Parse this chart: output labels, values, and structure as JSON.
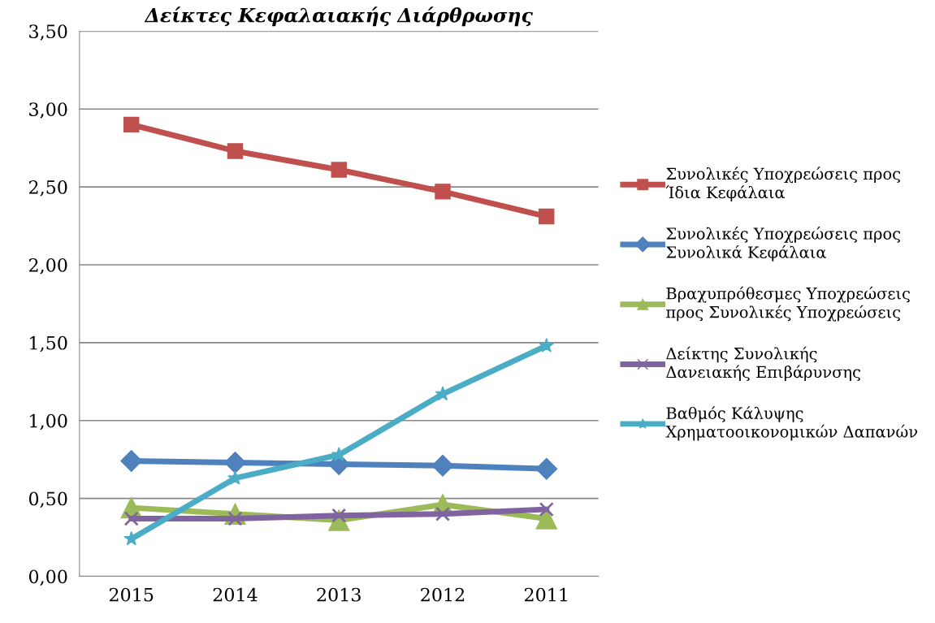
{
  "chart_data": {
    "type": "line",
    "title": "Δείκτες Κεφαλαιακής Διάρθρωσης",
    "categories": [
      "2015",
      "2014",
      "2013",
      "2012",
      "2011"
    ],
    "series": [
      {
        "name": "Συνολικές Υποχρεώσεις προς Ίδια Κεφάλαια",
        "color": "#c0504d",
        "marker": "square",
        "values": [
          2.9,
          2.73,
          2.61,
          2.47,
          2.31
        ]
      },
      {
        "name": "Συνολικές Υποχρεώσεις προς Συνολικά Κεφάλαια",
        "color": "#4f81bd",
        "marker": "diamond",
        "values": [
          0.74,
          0.73,
          0.72,
          0.71,
          0.69
        ]
      },
      {
        "name": "Βραχυπρόθεσμες Υποχρεώσεις προς Συνολικές Υποχρεώσεις",
        "color": "#9bbb59",
        "marker": "triangle",
        "values": [
          0.44,
          0.4,
          0.36,
          0.46,
          0.37
        ]
      },
      {
        "name": "Δείκτης Συνολικής Δανειακής Επιβάρυνσης",
        "color": "#8064a2",
        "marker": "cross",
        "values": [
          0.37,
          0.37,
          0.39,
          0.4,
          0.43
        ]
      },
      {
        "name": "Βαθμός Κάλυψης Χρηματοοικονομικών Δαπανών",
        "color": "#4bacc6",
        "marker": "star",
        "values": [
          0.24,
          0.63,
          0.78,
          1.17,
          1.48
        ]
      }
    ],
    "ylim": [
      0,
      3.5
    ],
    "yticks": [
      {
        "value": 0,
        "label": "0,00"
      },
      {
        "value": 0.5,
        "label": "0,50"
      },
      {
        "value": 1.0,
        "label": "1,00"
      },
      {
        "value": 1.5,
        "label": "1,50"
      },
      {
        "value": 2.0,
        "label": "2,00"
      },
      {
        "value": 2.5,
        "label": "2,50"
      },
      {
        "value": 3.0,
        "label": "3,00"
      },
      {
        "value": 3.5,
        "label": "3,50"
      }
    ],
    "grid": "y",
    "legend": "right",
    "line_style": "solid"
  }
}
